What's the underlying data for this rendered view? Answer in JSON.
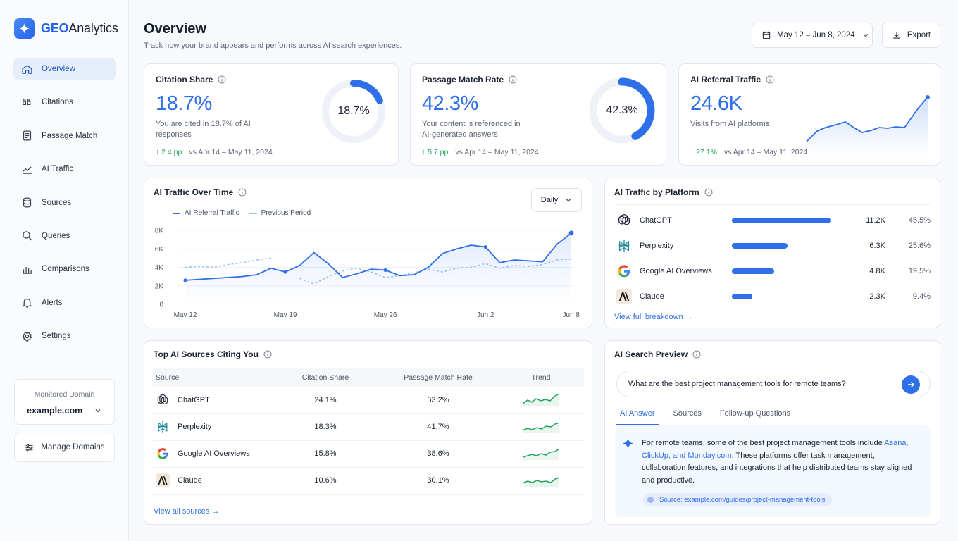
{
  "brand": {
    "prefix": "GEO",
    "suffix": "Analytics"
  },
  "sidebar": {
    "items": [
      {
        "label": "Overview"
      },
      {
        "label": "Citations"
      },
      {
        "label": "Passage Match"
      },
      {
        "label": "AI Traffic"
      },
      {
        "label": "Sources"
      },
      {
        "label": "Queries"
      },
      {
        "label": "Comparisons"
      },
      {
        "label": "Alerts"
      },
      {
        "label": "Settings"
      }
    ],
    "domain_label": "Monitored Domain",
    "domain_value": "example.com",
    "manage_label": "Manage Domains"
  },
  "header": {
    "title": "Overview",
    "subtitle": "Track how your brand appears and performs across AI search experiences.",
    "date_range": "May 12 – Jun 8, 2024",
    "export_label": "Export"
  },
  "kpis": {
    "citation": {
      "title": "Citation Share",
      "value": "18.7%",
      "desc": "You are cited in 18.7% of AI responses",
      "delta": "2.4 pp",
      "compare": "vs Apr 14 – May 11, 2024",
      "ring_label": "18.7%",
      "ring_fraction": 0.187
    },
    "passage": {
      "title": "Passage Match Rate",
      "value": "42.3%",
      "desc": "Your content is referenced in AI-generated answers",
      "delta": "5.7 pp",
      "compare": "vs Apr 14 – May 11, 2024",
      "ring_label": "42.3%",
      "ring_fraction": 0.423
    },
    "traffic": {
      "title": "AI Referral Traffic",
      "value": "24.6K",
      "desc": "Visits from AI platforms",
      "delta": "27.1%",
      "compare": "vs Apr 14 – May 11, 2024"
    }
  },
  "traffic_chart": {
    "title": "AI Traffic Over Time",
    "granularity": "Daily",
    "legend": {
      "current": "AI Referral Traffic",
      "previous": "Previous Period"
    }
  },
  "chart_data": {
    "type": "line",
    "x": [
      "May 12",
      "May 13",
      "May 14",
      "May 15",
      "May 16",
      "May 17",
      "May 18",
      "May 19",
      "May 20",
      "May 21",
      "May 22",
      "May 23",
      "May 24",
      "May 25",
      "May 26",
      "May 27",
      "May 28",
      "May 29",
      "May 30",
      "May 31",
      "Jun 1",
      "Jun 2",
      "Jun 3",
      "Jun 4",
      "Jun 5",
      "Jun 6",
      "Jun 7",
      "Jun 8"
    ],
    "x_ticks": [
      "May 12",
      "May 19",
      "May 26",
      "Jun 2",
      "Jun 8"
    ],
    "y_ticks": [
      "0",
      "2K",
      "4K",
      "6K",
      "8K"
    ],
    "ylim": [
      0,
      8000
    ],
    "series": [
      {
        "name": "AI Referral Traffic",
        "style": "solid",
        "values": [
          2600,
          2700,
          2800,
          2900,
          3000,
          3200,
          3900,
          3500,
          4200,
          5600,
          4400,
          2900,
          3300,
          3800,
          3700,
          3100,
          3200,
          4000,
          5500,
          6000,
          6400,
          6200,
          4500,
          4800,
          4700,
          4600,
          6500,
          7700
        ]
      },
      {
        "name": "Previous Period",
        "style": "dashed",
        "values": [
          4000,
          4100,
          4000,
          4300,
          4500,
          4800,
          5000,
          null,
          2800,
          2200,
          3000,
          3600,
          3900,
          3500,
          2900,
          3100,
          3400,
          3800,
          3500,
          3900,
          4000,
          4400,
          3900,
          4200,
          4100,
          4300,
          4800,
          4900
        ]
      }
    ]
  },
  "platforms": {
    "title": "AI Traffic by Platform",
    "rows": [
      {
        "name": "ChatGPT",
        "count": "11.2K",
        "pct": "45.5%",
        "share": 0.455
      },
      {
        "name": "Perplexity",
        "count": "6.3K",
        "pct": "25.6%",
        "share": 0.256
      },
      {
        "name": "Google AI Overviews",
        "count": "4.8K",
        "pct": "19.5%",
        "share": 0.195
      },
      {
        "name": "Claude",
        "count": "2.3K",
        "pct": "9.4%",
        "share": 0.094
      }
    ],
    "link": "View full breakdown →"
  },
  "sources_table": {
    "title": "Top AI Sources Citing You",
    "columns": [
      "Source",
      "Citation Share",
      "Passage Match Rate",
      "Trend"
    ],
    "rows": [
      {
        "source": "ChatGPT",
        "citation": "24.1%",
        "passage": "53.2%"
      },
      {
        "source": "Perplexity",
        "citation": "18.3%",
        "passage": "41.7%"
      },
      {
        "source": "Google AI Overviews",
        "citation": "15.8%",
        "passage": "38.6%"
      },
      {
        "source": "Claude",
        "citation": "10.6%",
        "passage": "30.1%"
      }
    ],
    "link": "View all sources →"
  },
  "preview": {
    "title": "AI Search Preview",
    "query": "What are the best project management tools for remote teams?",
    "tabs": [
      "AI Answer",
      "Sources",
      "Follow-up Questions"
    ],
    "answer_before": "For remote teams, some of the best project management tools include ",
    "answer_links": "Asana, ClickUp, and Monday.com",
    "answer_after": ". These platforms offer task management, collaboration features, and integrations that help distributed teams stay aligned and productive.",
    "source": "Source: example.com/guides/project-management-tools"
  },
  "colors": {
    "accent": "#2f6fe8",
    "positive": "#22a35a",
    "ring_track": "#eef2f8"
  }
}
